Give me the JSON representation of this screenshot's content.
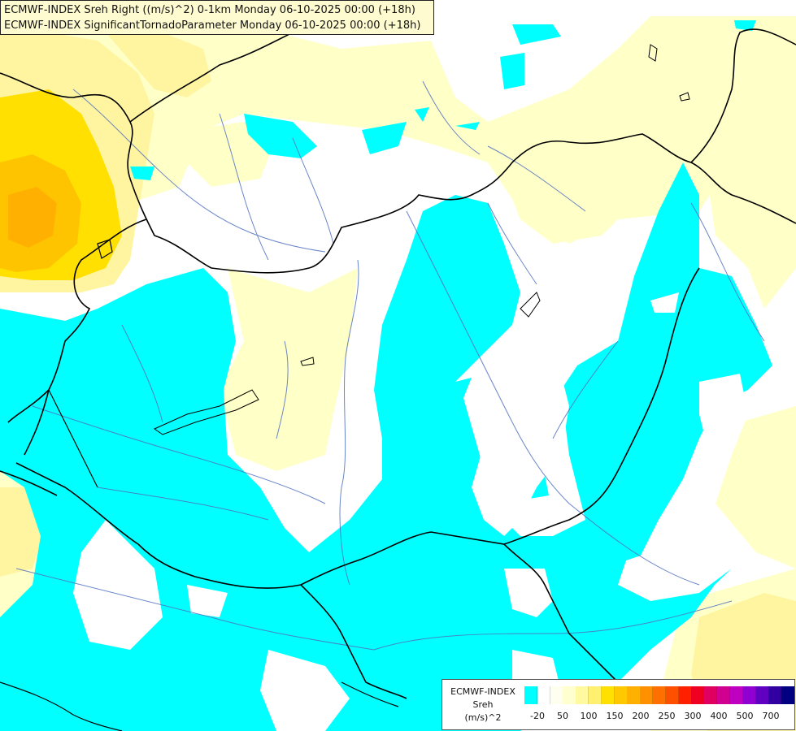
{
  "titles": {
    "line1": "ECMWF-INDEX Sreh Right ((m/s)^2) 0-1km Monday 06-10-2025 00:00 (+18h)",
    "line2": "ECMWF-INDEX SignificantTornadoParameter Monday 06-10-2025 00:00 (+18h)"
  },
  "legend": {
    "name": "ECMWF-INDEX",
    "variable": "Sreh",
    "unit": "(m/s)^2",
    "ticks": [
      "-20",
      "50",
      "100",
      "150",
      "200",
      "250",
      "300",
      "400",
      "500",
      "700"
    ],
    "colors": [
      "#00ffff",
      "#ffffff",
      "#fffff0",
      "#ffffd0",
      "#fffaa0",
      "#fff070",
      "#ffe000",
      "#ffc800",
      "#ffb000",
      "#ff9000",
      "#ff7000",
      "#ff5000",
      "#ff2000",
      "#f00020",
      "#e00060",
      "#d00090",
      "#c000c0",
      "#9000d0",
      "#6000c0",
      "#3000a0",
      "#000080"
    ]
  },
  "colors": {
    "cyan": "#00ffff",
    "white": "#ffffff",
    "pale_yellow": "#ffffc8",
    "light_yellow": "#fff5a0",
    "yellow": "#ffe600",
    "orange": "#ffc400",
    "border": "#000000",
    "river": "#5070c0"
  }
}
